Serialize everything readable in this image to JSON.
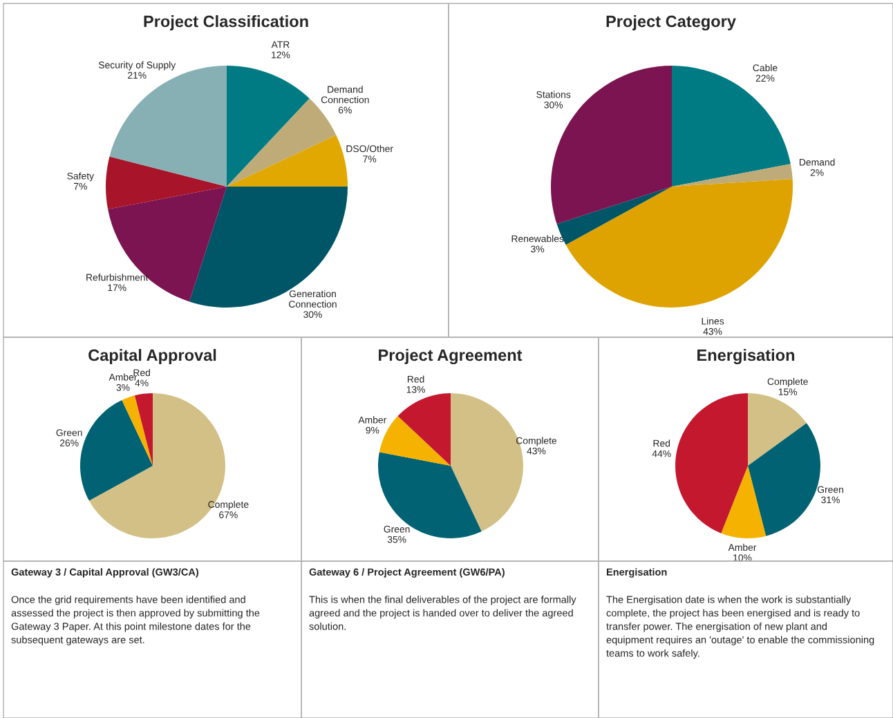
{
  "chart_data": [
    {
      "type": "pie",
      "title": "Project Classification",
      "categories": [
        "ATR",
        "Demand\nConnection",
        "DSO/Other",
        "Generation\nConnection",
        "Refurbishment",
        "Safety",
        "Security of Supply"
      ],
      "values": [
        12,
        6,
        7,
        30,
        17,
        7,
        21
      ],
      "value_labels": [
        "12%",
        "6%",
        "7%",
        "30%",
        "17%",
        "7%",
        "21%"
      ],
      "colors": [
        "#007b84",
        "#bfab77",
        "#e0a800",
        "#005566",
        "#7b1450",
        "#a8152a",
        "#87b0b4"
      ]
    },
    {
      "type": "pie",
      "title": "Project Category",
      "categories": [
        "Cable",
        "Demand",
        "Lines",
        "Renewables",
        "Stations"
      ],
      "values": [
        22,
        2,
        43,
        3,
        30
      ],
      "value_labels": [
        "22%",
        "2%",
        "43%",
        "3%",
        "30%"
      ],
      "colors": [
        "#007b84",
        "#bfab77",
        "#dea300",
        "#005566",
        "#7b1450"
      ]
    },
    {
      "type": "pie",
      "title": "Capital Approval",
      "categories": [
        "Complete",
        "Green",
        "Amber",
        "Red"
      ],
      "values": [
        67,
        26,
        3,
        4
      ],
      "value_labels": [
        "67%",
        "26%",
        "3%",
        "4%"
      ],
      "colors": [
        "#d3c086",
        "#006273",
        "#f5b200",
        "#c4182f"
      ]
    },
    {
      "type": "pie",
      "title": "Project Agreement",
      "categories": [
        "Complete",
        "Green",
        "Amber",
        "Red"
      ],
      "values": [
        43,
        35,
        9,
        13
      ],
      "value_labels": [
        "43%",
        "35%",
        "9%",
        "13%"
      ],
      "colors": [
        "#d3c086",
        "#006273",
        "#f5b200",
        "#c4182f"
      ]
    },
    {
      "type": "pie",
      "title": "Energisation",
      "categories": [
        "Complete",
        "Green",
        "Amber",
        "Red"
      ],
      "values": [
        15,
        31,
        10,
        44
      ],
      "value_labels": [
        "15%",
        "31%",
        "10%",
        "44%"
      ],
      "colors": [
        "#d3c086",
        "#006273",
        "#f5b200",
        "#c4182f"
      ]
    },
    {
      "type": "other",
      "title": "Gateway 3 / Capital Approval (GW3/CA)",
      "annotations": [
        "Once the grid requirements have been identified and\nassessed the project is then approved by submitting the\nGateway 3 Paper. At this point milestone dates for the\nsubsequent gateways are set."
      ]
    },
    {
      "type": "other",
      "title": "Gateway 6 / Project Agreement (GW6/PA)",
      "annotations": [
        "This is when the final deliverables of the project are formally\nagreed and the project is handed over to deliver the agreed\nsolution."
      ]
    },
    {
      "type": "other",
      "title": "Energisation",
      "annotations": [
        "The Energisation date is when the work is substantially\ncomplete, the project has been energised and is ready to\ntransfer power. The energisation of new plant and\nequipment requires an 'outage' to enable the commissioning\nteams to work safely."
      ]
    }
  ]
}
